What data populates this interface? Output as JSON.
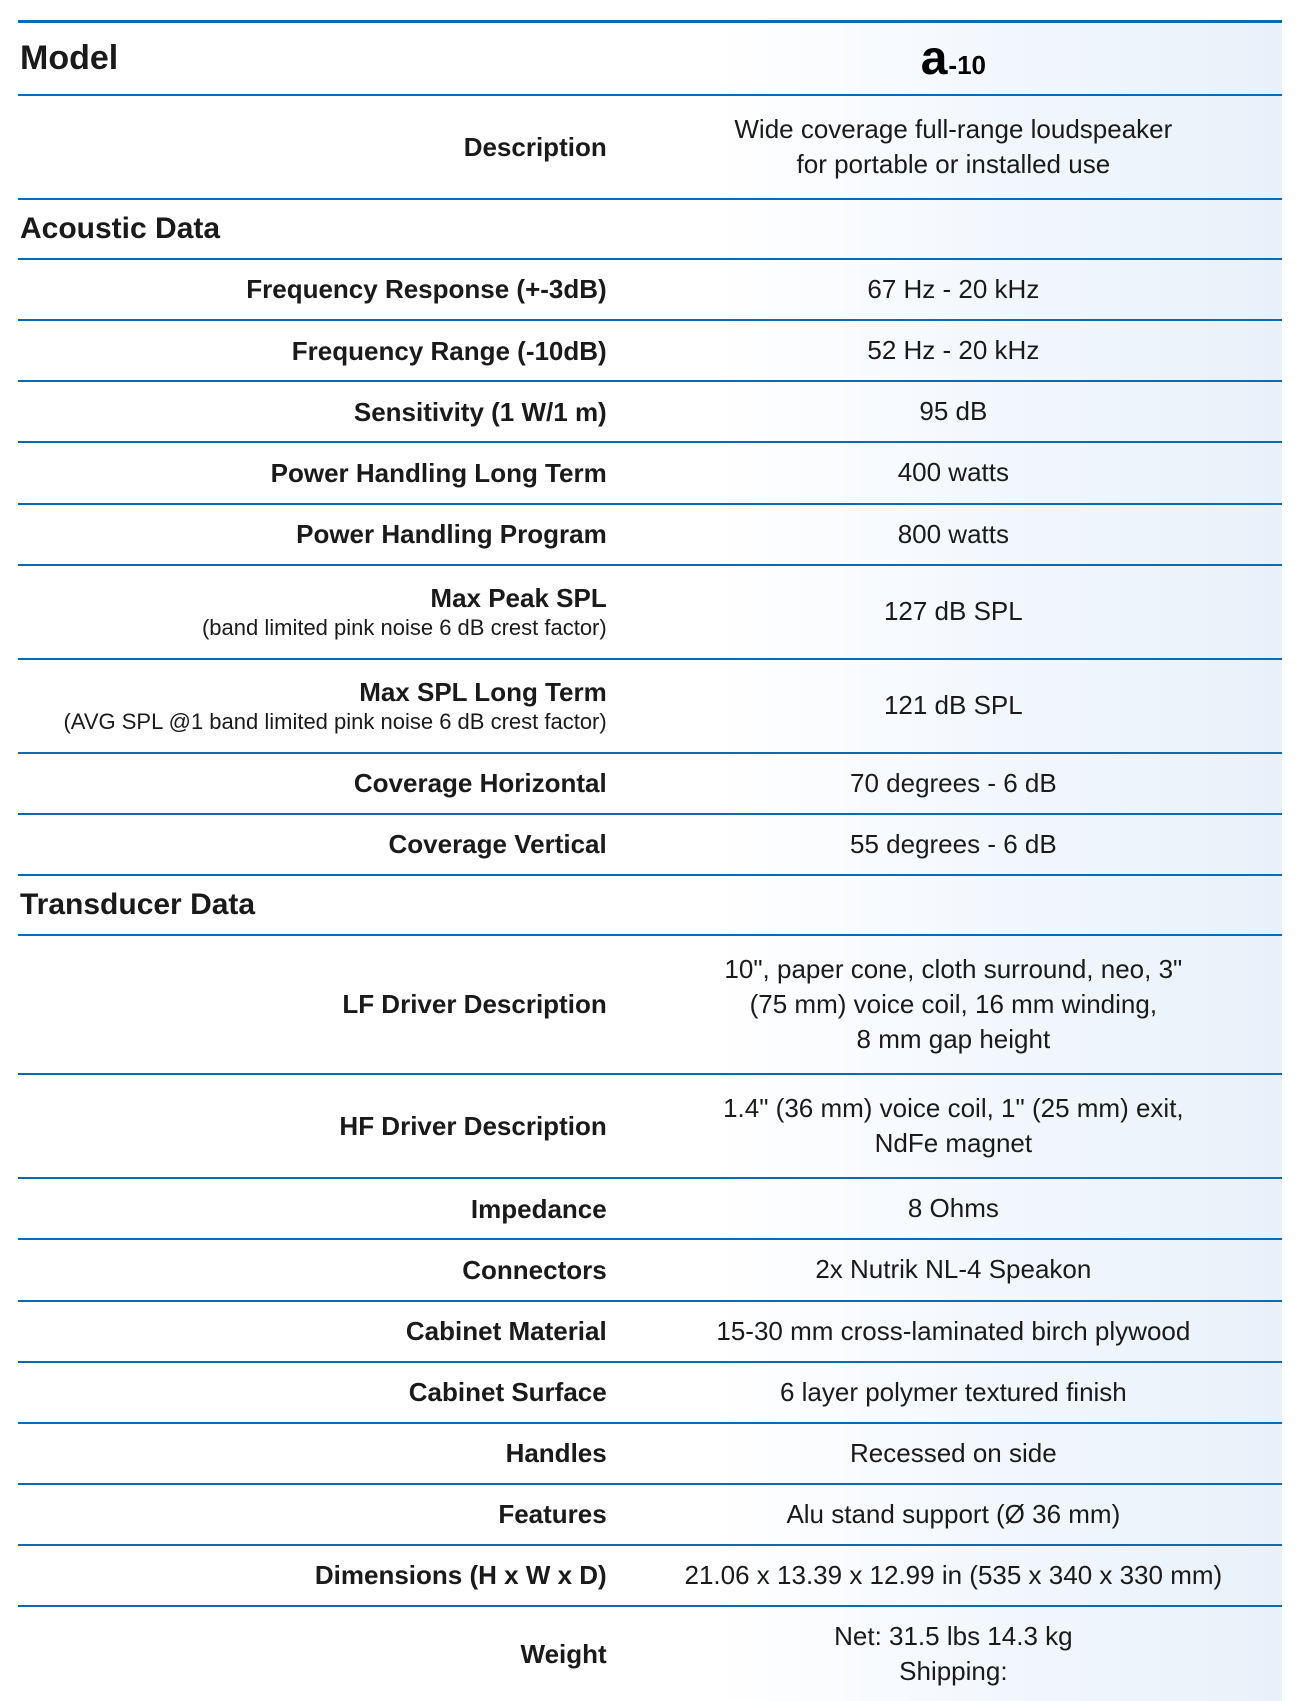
{
  "style": {
    "border_color": "#0a6ab4",
    "bg_gradient_from": "#ffffff",
    "bg_gradient_to": "#e8f1fa",
    "text_color": "#1a1a1a",
    "label_col_width_pct": 48,
    "value_col_width_pct": 52,
    "header_fontsize": 30,
    "model_header_fontsize": 34,
    "label_fontsize": 26,
    "sublabel_fontsize": 22,
    "value_fontsize": 26,
    "model_logo_a_fontsize": 48,
    "model_logo_suffix_fontsize": 26,
    "font_family": "Myriad Pro / Segoe UI / Helvetica Neue"
  },
  "header": {
    "model_label": "Model",
    "model_logo_a": "a",
    "model_logo_suffix": "-10"
  },
  "description": {
    "label": "Description",
    "value_line1": "Wide coverage full-range loudspeaker",
    "value_line2": "for portable or installed use"
  },
  "sections": {
    "acoustic": {
      "title": "Acoustic Data",
      "rows": {
        "freq_response": {
          "label": "Frequency Response  (+-3dB)",
          "value": "67 Hz - 20 kHz"
        },
        "freq_range": {
          "label": "Frequency Range (-10dB)",
          "value": "52 Hz - 20 kHz"
        },
        "sensitivity": {
          "label": "Sensitivity (1 W/1 m)",
          "value": "95 dB"
        },
        "pwr_long": {
          "label": "Power Handling Long Term",
          "value": "400 watts"
        },
        "pwr_program": {
          "label": "Power Handling Program",
          "value": "800 watts"
        },
        "max_peak_spl": {
          "label": "Max Peak SPL",
          "sublabel": "(band limited pink noise 6 dB crest factor)",
          "value": "127 dB SPL"
        },
        "max_spl_long": {
          "label": "Max SPL Long Term",
          "sublabel": "(AVG SPL @1 band limited pink noise 6 dB crest factor)",
          "value": "121 dB SPL"
        },
        "coverage_h": {
          "label": "Coverage Horizontal",
          "value": "70 degrees - 6 dB"
        },
        "coverage_v": {
          "label": "Coverage Vertical",
          "value": "55 degrees - 6 dB"
        }
      }
    },
    "transducer": {
      "title": "Transducer Data",
      "rows": {
        "lf_driver": {
          "label": "LF Driver Description",
          "value_line1": "10\", paper cone, cloth surround, neo, 3\"",
          "value_line2": "(75 mm) voice coil, 16 mm winding,",
          "value_line3": "8 mm gap height"
        },
        "hf_driver": {
          "label": "HF Driver Description",
          "value_line1": "1.4\" (36 mm) voice coil, 1\" (25 mm) exit,",
          "value_line2": "NdFe magnet"
        },
        "impedance": {
          "label": "Impedance",
          "value": "8 Ohms"
        },
        "connectors": {
          "label": "Connectors",
          "value": "2x Nutrik NL-4 Speakon"
        },
        "cab_material": {
          "label": "Cabinet Material",
          "value": "15-30 mm cross-laminated birch plywood"
        },
        "cab_surface": {
          "label": "Cabinet Surface",
          "value": "6 layer polymer textured finish"
        },
        "handles": {
          "label": "Handles",
          "value": "Recessed on side"
        },
        "features": {
          "label": "Features",
          "value": "Alu stand support (Ø 36 mm)"
        },
        "dimensions": {
          "label": "Dimensions (H x W x D)",
          "value": "21.06 x 13.39 x 12.99 in (535 x 340 x 330 mm)"
        },
        "weight": {
          "label": "Weight",
          "value_line1": "Net: 31.5 lbs 14.3 kg",
          "value_line2": "Shipping:"
        }
      }
    }
  }
}
